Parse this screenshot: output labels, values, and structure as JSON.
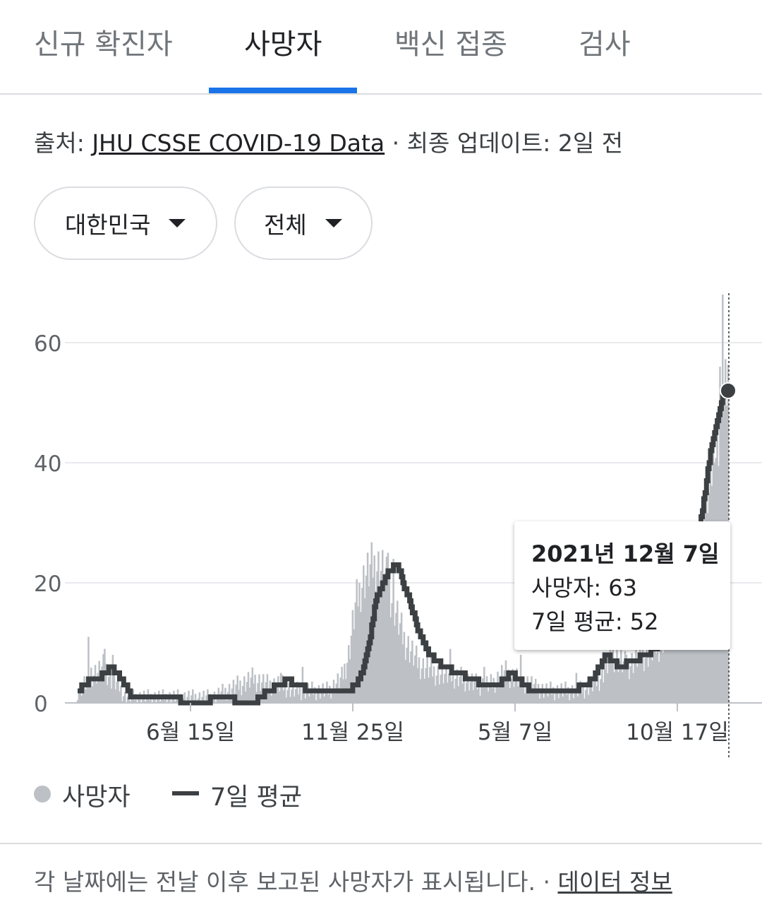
{
  "tabs": [
    {
      "label": "신규 확진자",
      "active": false
    },
    {
      "label": "사망자",
      "active": true
    },
    {
      "label": "백신 접종",
      "active": false
    },
    {
      "label": "검사",
      "active": false
    }
  ],
  "source": {
    "prefix": "출처: ",
    "link": "JHU CSSE COVID-19 Data",
    "separator": " · ",
    "updated": "최종 업데이트: 2일 전"
  },
  "filters": {
    "country": "대한민국",
    "range": "전체"
  },
  "chart_data": {
    "type": "bar",
    "y_ticks": [
      "60",
      "40",
      "20",
      "0"
    ],
    "x_ticks": [
      "6월 15일",
      "11월 25일",
      "5월 7일",
      "10월 17일"
    ],
    "ylim": [
      0,
      70
    ],
    "series": [
      {
        "name": "사망자",
        "style": "bars",
        "color": "#bdc1c6",
        "profile": [
          [
            0,
            2
          ],
          [
            5,
            3
          ],
          [
            10,
            5
          ],
          [
            15,
            5
          ],
          [
            20,
            6
          ],
          [
            25,
            4
          ],
          [
            30,
            3
          ],
          [
            35,
            1
          ],
          [
            45,
            1
          ],
          [
            55,
            1
          ],
          [
            65,
            1
          ],
          [
            75,
            1
          ],
          [
            85,
            1
          ],
          [
            100,
            1
          ],
          [
            110,
            2
          ],
          [
            120,
            3
          ],
          [
            130,
            4
          ],
          [
            140,
            3
          ],
          [
            150,
            3
          ],
          [
            160,
            2
          ],
          [
            175,
            2
          ],
          [
            185,
            2
          ],
          [
            190,
            3
          ],
          [
            195,
            4
          ],
          [
            200,
            8
          ],
          [
            205,
            16
          ],
          [
            210,
            20
          ],
          [
            215,
            22
          ],
          [
            220,
            23
          ],
          [
            225,
            22
          ],
          [
            230,
            19
          ],
          [
            235,
            15
          ],
          [
            240,
            11
          ],
          [
            245,
            9
          ],
          [
            250,
            7
          ],
          [
            255,
            6
          ],
          [
            265,
            5
          ],
          [
            275,
            4
          ],
          [
            285,
            4
          ],
          [
            295,
            3
          ],
          [
            305,
            3
          ],
          [
            315,
            5
          ],
          [
            325,
            4
          ],
          [
            335,
            3
          ],
          [
            345,
            2
          ],
          [
            360,
            2
          ],
          [
            370,
            2
          ],
          [
            380,
            3
          ],
          [
            385,
            4
          ],
          [
            390,
            6
          ],
          [
            395,
            8
          ],
          [
            400,
            7
          ],
          [
            405,
            6
          ],
          [
            410,
            7
          ],
          [
            415,
            8
          ],
          [
            420,
            8
          ],
          [
            425,
            9
          ],
          [
            430,
            10
          ],
          [
            435,
            12
          ],
          [
            445,
            14
          ],
          [
            455,
            20
          ],
          [
            460,
            28
          ],
          [
            465,
            36
          ],
          [
            470,
            42
          ],
          [
            475,
            48
          ],
          [
            478,
            52
          ],
          [
            480,
            55
          ]
        ],
        "spikes": [
          [
            8,
            11
          ],
          [
            20,
            9
          ],
          [
            26,
            8
          ],
          [
            150,
            5
          ],
          [
            166,
            6
          ],
          [
            224,
            22
          ],
          [
            229,
            25
          ],
          [
            233,
            24
          ],
          [
            275,
            9
          ],
          [
            300,
            6
          ],
          [
            327,
            8
          ],
          [
            338,
            4
          ],
          [
            368,
            5
          ],
          [
            398,
            9
          ],
          [
            405,
            8
          ],
          [
            440,
            20
          ],
          [
            452,
            25
          ],
          [
            466,
            35
          ],
          [
            470,
            40
          ],
          [
            474,
            56
          ],
          [
            476,
            68
          ]
        ]
      },
      {
        "name": "7일 평균",
        "style": "line",
        "color": "#3c4043",
        "profile": [
          [
            0,
            2
          ],
          [
            5,
            3
          ],
          [
            10,
            4
          ],
          [
            15,
            4
          ],
          [
            20,
            5
          ],
          [
            25,
            6
          ],
          [
            28,
            5
          ],
          [
            32,
            4
          ],
          [
            35,
            3
          ],
          [
            40,
            1
          ],
          [
            55,
            1
          ],
          [
            70,
            1
          ],
          [
            80,
            0
          ],
          [
            95,
            0
          ],
          [
            100,
            1
          ],
          [
            110,
            1
          ],
          [
            120,
            0
          ],
          [
            130,
            0
          ],
          [
            135,
            1
          ],
          [
            140,
            2
          ],
          [
            150,
            3
          ],
          [
            155,
            4
          ],
          [
            160,
            3
          ],
          [
            165,
            3
          ],
          [
            170,
            2
          ],
          [
            185,
            2
          ],
          [
            200,
            2
          ],
          [
            205,
            3
          ],
          [
            210,
            5
          ],
          [
            215,
            10
          ],
          [
            220,
            17
          ],
          [
            225,
            20
          ],
          [
            230,
            22
          ],
          [
            235,
            23
          ],
          [
            238,
            22
          ],
          [
            240,
            20
          ],
          [
            245,
            17
          ],
          [
            250,
            13
          ],
          [
            255,
            10
          ],
          [
            260,
            8
          ],
          [
            265,
            7
          ],
          [
            270,
            6
          ],
          [
            280,
            5
          ],
          [
            290,
            4
          ],
          [
            300,
            3
          ],
          [
            310,
            3
          ],
          [
            315,
            4
          ],
          [
            320,
            5
          ],
          [
            325,
            4
          ],
          [
            330,
            3
          ],
          [
            335,
            2
          ],
          [
            350,
            2
          ],
          [
            365,
            2
          ],
          [
            375,
            3
          ],
          [
            380,
            4
          ],
          [
            385,
            6
          ],
          [
            390,
            8
          ],
          [
            395,
            7
          ],
          [
            400,
            6
          ],
          [
            410,
            7
          ],
          [
            420,
            8
          ],
          [
            430,
            10
          ],
          [
            440,
            14
          ],
          [
            450,
            20
          ],
          [
            458,
            28
          ],
          [
            463,
            35
          ],
          [
            467,
            42
          ],
          [
            471,
            46
          ],
          [
            475,
            50
          ],
          [
            478,
            52
          ],
          [
            480,
            52
          ]
        ]
      }
    ],
    "tooltip": {
      "date": "2021년 12월 7일",
      "deaths": "사망자: 63",
      "average": "7일 평균: 52"
    }
  },
  "legend": [
    {
      "label": "사망자",
      "icon": "gray-dot"
    },
    {
      "label": "7일 평균",
      "icon": "dark-line"
    }
  ],
  "footer": {
    "note": "각 날짜에는 전날 이후 보고된 사망자가 표시됩니다.",
    "separator": " · ",
    "link": "데이터 정보"
  }
}
